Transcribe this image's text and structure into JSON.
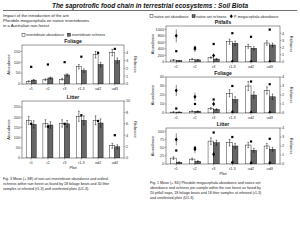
{
  "title": "The saprotrofic food chain in terrestrial ecosystems : Soil Biota",
  "subtitle": [
    "Impact of the introduction of the ant",
    "Pheidole megacephala on native invertebrates",
    "in a Australian rain forest"
  ],
  "annotations": [
    "Fig. 3  Mean (+ SE) of non-ant invertebrate abundance and ordinal\nrichness within rain forest as found by 18 foliage beats and 30 litter\nsamples at infested (r1-3) and uninfested plots (U1-3).",
    "Fig. 1  Mean (+ SD) Pheidole megacephala abundance and native ant\nabundance and richness per sample within the rain forest as found by\n20 pitfall traps, 18 foliage beats and 18 litter samples at infested (r1-3)\nand uninfested plots (U1-3)."
  ],
  "chart_data": [
    {
      "type": "bar",
      "title": "Foliage",
      "categories": [
        "r1",
        "r2",
        "r3",
        "r1-3",
        "ud2",
        "ud3"
      ],
      "ylabel": "Abundance",
      "y2label": "Richness",
      "ylim": [
        0,
        180
      ],
      "yticks": [
        0,
        50,
        100,
        150
      ],
      "y2lim": [
        0,
        5
      ],
      "y2ticks": [
        0,
        1,
        2,
        3,
        4
      ],
      "legend": "top",
      "series": [
        {
          "name": "invertebrate abundance",
          "color": "#ffffff",
          "values": [
            12,
            20,
            22,
            80,
            135,
            145
          ],
          "errors": [
            3,
            4,
            4,
            10,
            15,
            15
          ]
        },
        {
          "name": "invertebrate richness",
          "color": "#666666",
          "values": [
            18,
            28,
            42,
            62,
            90,
            108
          ],
          "errors": [
            3,
            4,
            5,
            8,
            10,
            12
          ]
        },
        {
          "type": "scatter",
          "marker": "square",
          "color": "#000000",
          "axis": "y2",
          "values": [
            2.2,
            2.5,
            2.8,
            3.5,
            4.0,
            4.5
          ]
        }
      ]
    },
    {
      "type": "bar",
      "title": "Litter",
      "categories": [
        "r1",
        "r2",
        "r3",
        "r1-3",
        "ud2",
        "ud3"
      ],
      "xlabel": "Plot",
      "ylabel": "Abundance",
      "y2label": "Richness",
      "ylim": [
        0,
        280
      ],
      "yticks": [
        0,
        50,
        100,
        150,
        200,
        250
      ],
      "y2lim": [
        0,
        10
      ],
      "y2ticks": [
        0,
        2,
        4,
        6,
        8,
        10
      ],
      "series": [
        {
          "color": "#ffffff",
          "values": [
            185,
            170,
            170,
            205,
            185,
            60
          ],
          "errors": [
            20,
            18,
            18,
            25,
            22,
            12
          ]
        },
        {
          "color": "#666666",
          "values": [
            165,
            162,
            168,
            185,
            172,
            55
          ],
          "errors": [
            18,
            16,
            16,
            22,
            20,
            10
          ]
        },
        {
          "type": "scatter",
          "marker": "square",
          "color": "#000000",
          "axis": "y2",
          "values": [
            6,
            5.5,
            6,
            7.5,
            6.5,
            4
          ]
        }
      ]
    },
    {
      "type": "bar",
      "title": "Pitfalls",
      "categories": [
        "r1",
        "r2",
        "r3",
        "r1-3",
        "ud2",
        "ud3"
      ],
      "ylabel": "Abundance",
      "y2label": "Richness",
      "ylim": [
        0,
        1100
      ],
      "yticks": [
        0,
        200,
        400,
        600,
        800,
        1000
      ],
      "y2lim": [
        0,
        5
      ],
      "y2ticks": [
        0,
        1,
        2,
        3,
        4
      ],
      "legend": "top",
      "series": [
        {
          "name": "native ant abundance",
          "color": "#ffffff",
          "values": [
            60,
            85,
            130,
            620,
            480,
            580
          ],
          "errors": [
            15,
            18,
            25,
            80,
            60,
            70
          ]
        },
        {
          "name": "native ant richness",
          "color": "#666666",
          "values": [
            40,
            65,
            90,
            570,
            420,
            520
          ],
          "errors": [
            10,
            14,
            18,
            70,
            50,
            60
          ]
        },
        {
          "type": "scatter",
          "marker": "square",
          "color": "#000000",
          "axis": "y2",
          "values": [
            1.5,
            2.0,
            2.5,
            4.0,
            3.5,
            4.5
          ]
        },
        {
          "name": "P. megacephala abundance",
          "type": "scatter",
          "marker": "diamond",
          "color": "#000000",
          "values": [
            800,
            400,
            200,
            20,
            10,
            10
          ],
          "errors": [
            200,
            100,
            50,
            5,
            2.5,
            2.5
          ]
        }
      ]
    },
    {
      "type": "bar",
      "title": "Foliage",
      "categories": [
        "r1",
        "r2",
        "r3",
        "r1-3",
        "ud2",
        "ud3"
      ],
      "ylabel": "Abundance",
      "y2label": "Richness",
      "ylim": [
        0,
        40
      ],
      "yticks": [
        0,
        10,
        20,
        30,
        40
      ],
      "y2lim": [
        0,
        4
      ],
      "y2ticks": [
        0,
        1,
        2,
        3,
        4
      ],
      "series": [
        {
          "color": "#ffffff",
          "values": [
            1,
            2,
            5,
            22,
            30,
            25
          ],
          "errors": [
            0.5,
            0.5,
            1,
            4,
            5,
            4
          ]
        },
        {
          "color": "#666666",
          "values": [
            1,
            2,
            4,
            15,
            20,
            18
          ],
          "errors": [
            0.3,
            0.4,
            0.8,
            3,
            3.5,
            3
          ]
        },
        {
          "type": "scatter",
          "marker": "square",
          "color": "#000000",
          "axis": "y2",
          "values": [
            0.5,
            1.0,
            1.5,
            3.0,
            3.5,
            3.2
          ]
        },
        {
          "type": "scatter",
          "marker": "diamond",
          "color": "#000000",
          "values": [
            25,
            18,
            10,
            1,
            0.5,
            0.5
          ],
          "errors": [
            6.25,
            4.5,
            2.5,
            0.25,
            0.125,
            0.125
          ]
        }
      ]
    },
    {
      "type": "bar",
      "title": "Litter",
      "categories": [
        "r1",
        "r2",
        "r3",
        "r1-3",
        "ud2",
        "ud3"
      ],
      "xlabel": "Plot",
      "ylabel": "Abundance",
      "y2label": "Richness",
      "ylim": [
        0,
        110
      ],
      "yticks": [
        0,
        25,
        50,
        75,
        100
      ],
      "y2lim": [
        0,
        4
      ],
      "y2ticks": [
        0,
        1,
        2,
        3,
        4
      ],
      "series": [
        {
          "color": "#ffffff",
          "values": [
            18,
            15,
            70,
            65,
            58,
            55
          ],
          "errors": [
            4,
            3,
            10,
            10,
            8,
            8
          ]
        },
        {
          "color": "#666666",
          "values": [
            5,
            8,
            65,
            55,
            42,
            45
          ],
          "errors": [
            2,
            2,
            8,
            8,
            6,
            6
          ]
        },
        {
          "type": "scatter",
          "marker": "square",
          "color": "#000000",
          "axis": "y2",
          "values": [
            1.5,
            1.8,
            3.5,
            3.0,
            2.5,
            2.8
          ]
        },
        {
          "type": "scatter",
          "marker": "diamond",
          "color": "#000000",
          "values": [
            75,
            45,
            30,
            5,
            3,
            3
          ],
          "errors": [
            18.75,
            11.25,
            7.5,
            1.25,
            0.75,
            0.75
          ]
        }
      ]
    }
  ]
}
